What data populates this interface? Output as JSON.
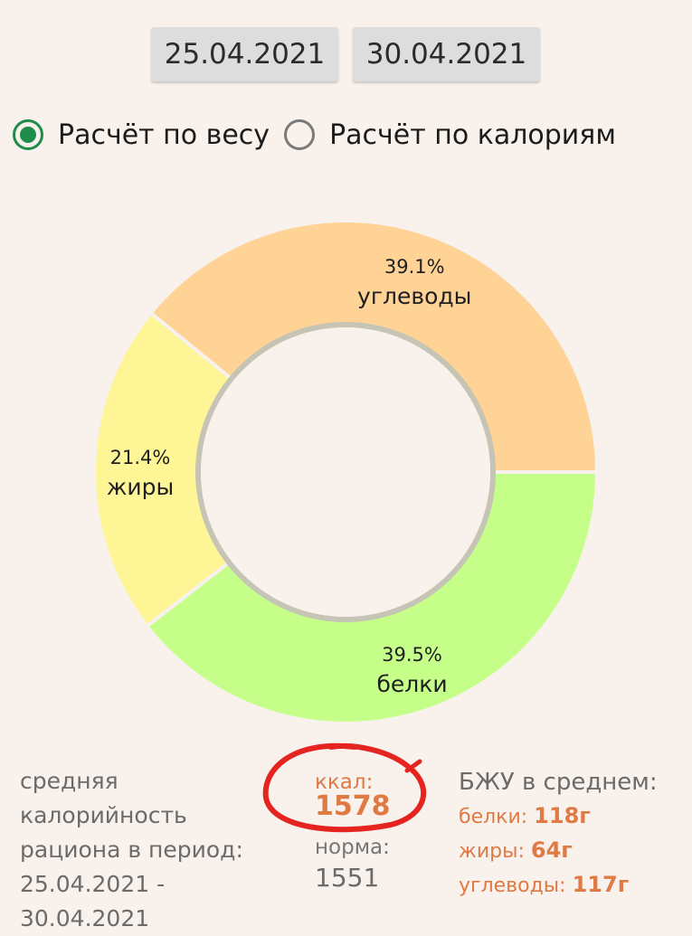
{
  "date_range": {
    "start": "25.04.2021",
    "end": "30.04.2021"
  },
  "mode": {
    "options": [
      {
        "label": "Расчёт по весу",
        "selected": true
      },
      {
        "label": "Расчёт по калориям",
        "selected": false
      }
    ]
  },
  "chart_data": {
    "type": "pie",
    "slices": [
      {
        "label": "углеводы",
        "percent_label": "39.1%",
        "value": 39.1,
        "color": "#ffd296"
      },
      {
        "label": "белки",
        "percent_label": "39.5%",
        "value": 39.5,
        "color": "#c5ff8a"
      },
      {
        "label": "жиры",
        "percent_label": "21.4%",
        "value": 21.4,
        "color": "#fdf596"
      }
    ]
  },
  "summary": {
    "avg_label_lines": [
      "средняя калорийность",
      "рациона в период:",
      "25.04.2021 -",
      "30.04.2021"
    ],
    "kcal_label": "ккал:",
    "kcal_value": "1578",
    "norm_label": "норма:",
    "norm_value": "1551"
  },
  "bju": {
    "title": "БЖУ в среднем:",
    "rows": [
      {
        "label": "белки:",
        "value": "118г"
      },
      {
        "label": "жиры:",
        "value": "64г"
      },
      {
        "label": "углеводы:",
        "value": "117г"
      }
    ]
  },
  "colors": {
    "accent_green": "#1e8c4a",
    "accent_orange": "#e07a45",
    "annotation_red": "#e5231f"
  }
}
